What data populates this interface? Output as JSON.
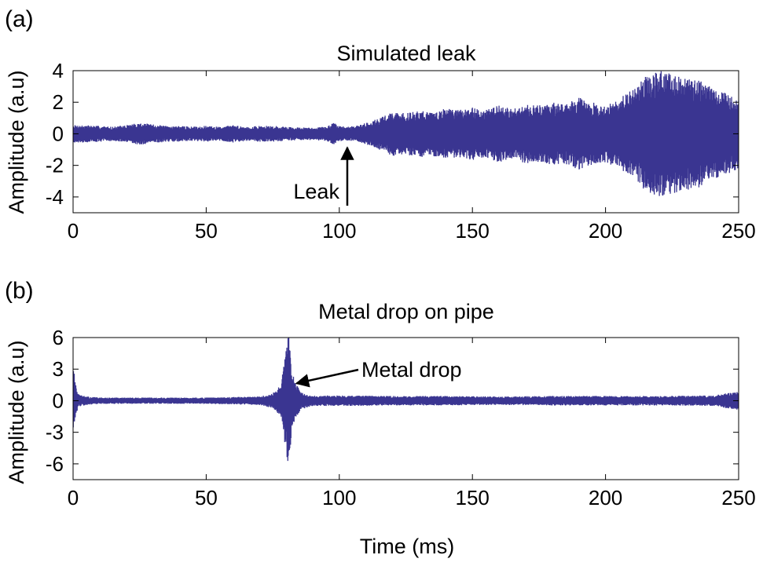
{
  "chart_data": [
    {
      "panel_label": "(a)",
      "type": "line",
      "title": "Simulated leak",
      "xlabel": "",
      "ylabel": "Amplitude (a.u)",
      "xlim": [
        0,
        250
      ],
      "ylim": [
        -5,
        4
      ],
      "xticks": [
        0,
        50,
        100,
        150,
        200,
        250
      ],
      "yticks": [
        4,
        2,
        0,
        -2,
        -4
      ],
      "grid": false,
      "series_color": "#3a3591",
      "envelope": {
        "time_ms": [
          0,
          5,
          10,
          15,
          20,
          25,
          30,
          35,
          40,
          45,
          50,
          55,
          60,
          65,
          70,
          75,
          80,
          85,
          90,
          95,
          98,
          100,
          103,
          106,
          110,
          115,
          120,
          125,
          130,
          135,
          140,
          145,
          150,
          155,
          160,
          165,
          170,
          175,
          180,
          185,
          190,
          195,
          200,
          205,
          210,
          215,
          220,
          225,
          230,
          235,
          240,
          245,
          250
        ],
        "amplitude": [
          0.55,
          0.55,
          0.5,
          0.45,
          0.55,
          0.7,
          0.6,
          0.5,
          0.5,
          0.45,
          0.5,
          0.45,
          0.55,
          0.45,
          0.5,
          0.5,
          0.45,
          0.4,
          0.4,
          0.45,
          0.7,
          0.5,
          0.45,
          0.5,
          0.7,
          1.0,
          1.4,
          1.3,
          1.5,
          1.4,
          1.6,
          1.5,
          1.7,
          1.5,
          1.8,
          1.6,
          1.9,
          1.8,
          2.0,
          1.9,
          2.3,
          2.0,
          1.8,
          2.2,
          2.8,
          3.6,
          4.0,
          3.8,
          3.6,
          3.4,
          3.0,
          2.6,
          2.2
        ]
      },
      "annotation": {
        "text": "Leak",
        "x": 103
      }
    },
    {
      "panel_label": "(b)",
      "type": "line",
      "title": "Metal drop on pipe",
      "xlabel": "Time (ms)",
      "ylabel": "Amplitude (a.u)",
      "xlim": [
        0,
        250
      ],
      "ylim": [
        -7.5,
        6
      ],
      "xticks": [
        0,
        50,
        100,
        150,
        200,
        250
      ],
      "yticks": [
        6,
        3,
        0,
        -3,
        -6
      ],
      "grid": false,
      "series_color": "#3a3591",
      "envelope": {
        "time_ms": [
          0,
          1,
          2,
          5,
          10,
          20,
          30,
          40,
          50,
          60,
          70,
          75,
          78,
          80,
          81,
          82,
          84,
          86,
          90,
          100,
          120,
          140,
          160,
          180,
          200,
          220,
          240,
          248,
          250
        ],
        "amplitude": [
          3.5,
          1.5,
          0.6,
          0.4,
          0.3,
          0.3,
          0.3,
          0.3,
          0.3,
          0.35,
          0.4,
          0.7,
          1.5,
          4.8,
          7.0,
          3.0,
          1.5,
          0.8,
          0.5,
          0.5,
          0.45,
          0.45,
          0.4,
          0.45,
          0.45,
          0.45,
          0.5,
          0.8,
          0.9
        ]
      },
      "annotation": {
        "text": "Metal drop",
        "x": 81,
        "y": 1.8
      }
    }
  ]
}
